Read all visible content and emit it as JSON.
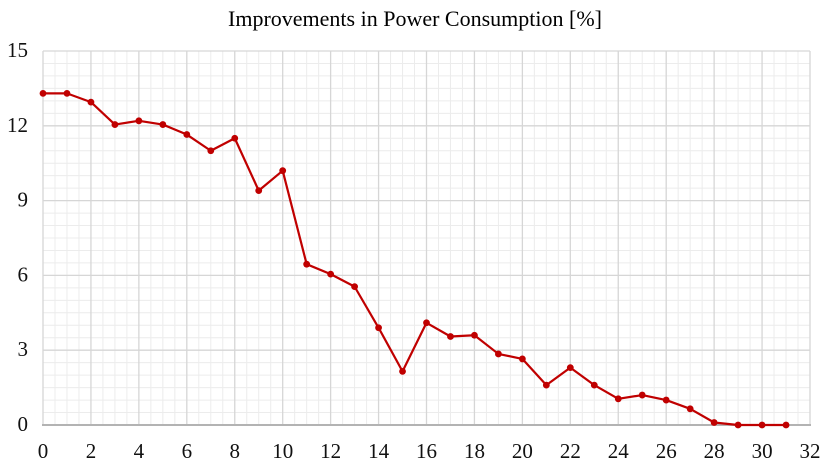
{
  "chart_data": {
    "type": "line",
    "title": "Improvements in Power Consumption [%]",
    "xlabel": "",
    "ylabel": "",
    "x": [
      0,
      1,
      2,
      3,
      4,
      5,
      6,
      7,
      8,
      9,
      10,
      11,
      12,
      13,
      14,
      15,
      16,
      17,
      18,
      19,
      20,
      21,
      22,
      23,
      24,
      25,
      26,
      27,
      28,
      29,
      30,
      31
    ],
    "series": [
      {
        "name": "Improvements in Power Consumption [%]",
        "color": "#c00000",
        "marker": "circle",
        "values": [
          13.3,
          13.3,
          12.95,
          12.05,
          12.2,
          12.05,
          11.65,
          11.0,
          11.5,
          9.4,
          10.2,
          6.45,
          6.05,
          5.55,
          3.9,
          2.15,
          4.1,
          3.55,
          3.6,
          2.85,
          2.65,
          1.6,
          2.3,
          1.6,
          1.05,
          1.2,
          1.0,
          0.65,
          0.1,
          0.0,
          0.0,
          0.0
        ]
      }
    ],
    "xlim": [
      0,
      32
    ],
    "ylim": [
      0,
      15
    ],
    "xticks": [
      0,
      2,
      4,
      6,
      8,
      10,
      12,
      14,
      16,
      18,
      20,
      22,
      24,
      26,
      28,
      30,
      32
    ],
    "yticks": [
      0,
      3,
      6,
      9,
      12,
      15
    ],
    "minor_step_x": 0.5,
    "minor_step_y": 0.5,
    "grid": {
      "minor": true,
      "major": true,
      "minor_color": "#ececec",
      "major_color": "#d6d6d6",
      "axis_color": "#b3b3b3"
    },
    "legend": "none"
  }
}
